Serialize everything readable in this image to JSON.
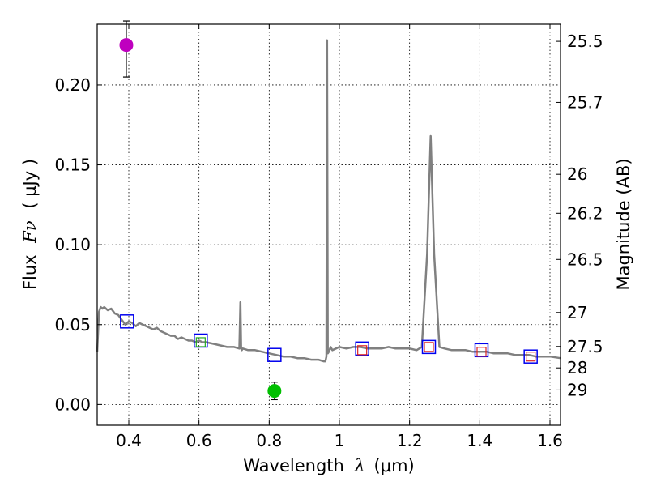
{
  "chart_data": {
    "type": "scatter",
    "title": "",
    "xlabel_pre": "Wavelength",
    "xlabel_sym": "λ",
    "xlabel_unit": "(μm)",
    "ylabel_pre": "Flux",
    "ylabel_sym": "Fν",
    "ylabel_unit": "( μJy )",
    "y2label": "Magnitude (AB)",
    "xlim": [
      0.31,
      1.63
    ],
    "ylim": [
      -0.013,
      0.238
    ],
    "grid": true,
    "x_ticks": [
      {
        "v": 0.4,
        "label": "0.4"
      },
      {
        "v": 0.6,
        "label": "0.6"
      },
      {
        "v": 0.8,
        "label": "0.8"
      },
      {
        "v": 1.0,
        "label": "1"
      },
      {
        "v": 1.2,
        "label": "1.2"
      },
      {
        "v": 1.4,
        "label": "1.4"
      },
      {
        "v": 1.6,
        "label": "1.6"
      }
    ],
    "y_ticks": [
      {
        "v": 0.0,
        "label": "0.00"
      },
      {
        "v": 0.05,
        "label": "0.05"
      },
      {
        "v": 0.1,
        "label": "0.10"
      },
      {
        "v": 0.15,
        "label": "0.15"
      },
      {
        "v": 0.2,
        "label": "0.20"
      }
    ],
    "mag_ticks": [
      {
        "v": 0.2273,
        "label": "25.5"
      },
      {
        "v": 0.1891,
        "label": "25.7"
      },
      {
        "v": 0.1441,
        "label": "26"
      },
      {
        "v": 0.1197,
        "label": "26.2"
      },
      {
        "v": 0.0908,
        "label": "26.5"
      },
      {
        "v": 0.0576,
        "label": "27"
      },
      {
        "v": 0.0363,
        "label": "27.5"
      },
      {
        "v": 0.0229,
        "label": "28"
      },
      {
        "v": 0.0091,
        "label": "29"
      }
    ],
    "sed_model": {
      "color": "#808080",
      "x": [
        0.31,
        0.315,
        0.32,
        0.325,
        0.33,
        0.34,
        0.35,
        0.36,
        0.37,
        0.38,
        0.39,
        0.4,
        0.41,
        0.42,
        0.43,
        0.44,
        0.45,
        0.46,
        0.47,
        0.48,
        0.49,
        0.5,
        0.51,
        0.52,
        0.53,
        0.54,
        0.55,
        0.56,
        0.57,
        0.58,
        0.59,
        0.6,
        0.61,
        0.62,
        0.64,
        0.66,
        0.68,
        0.7,
        0.715,
        0.718,
        0.72,
        0.722,
        0.725,
        0.74,
        0.76,
        0.78,
        0.8,
        0.82,
        0.84,
        0.86,
        0.88,
        0.9,
        0.92,
        0.94,
        0.955,
        0.96,
        0.963,
        0.965,
        0.967,
        0.97,
        0.975,
        0.98,
        0.99,
        1.0,
        1.02,
        1.04,
        1.06,
        1.08,
        1.1,
        1.12,
        1.14,
        1.16,
        1.18,
        1.2,
        1.22,
        1.235,
        1.25,
        1.26,
        1.27,
        1.285,
        1.3,
        1.32,
        1.34,
        1.36,
        1.38,
        1.4,
        1.42,
        1.44,
        1.46,
        1.48,
        1.5,
        1.52,
        1.54,
        1.56,
        1.58,
        1.6,
        1.63
      ],
      "y": [
        0.033,
        0.058,
        0.061,
        0.06,
        0.061,
        0.059,
        0.06,
        0.057,
        0.056,
        0.053,
        0.05,
        0.052,
        0.051,
        0.049,
        0.051,
        0.05,
        0.049,
        0.048,
        0.047,
        0.048,
        0.046,
        0.045,
        0.044,
        0.043,
        0.043,
        0.041,
        0.042,
        0.041,
        0.04,
        0.04,
        0.039,
        0.04,
        0.039,
        0.039,
        0.038,
        0.037,
        0.036,
        0.036,
        0.035,
        0.064,
        0.035,
        0.034,
        0.035,
        0.034,
        0.034,
        0.033,
        0.032,
        0.031,
        0.03,
        0.03,
        0.029,
        0.029,
        0.028,
        0.028,
        0.027,
        0.027,
        0.03,
        0.228,
        0.032,
        0.033,
        0.036,
        0.034,
        0.035,
        0.036,
        0.035,
        0.036,
        0.036,
        0.035,
        0.035,
        0.035,
        0.036,
        0.035,
        0.035,
        0.035,
        0.034,
        0.036,
        0.094,
        0.168,
        0.094,
        0.036,
        0.035,
        0.034,
        0.034,
        0.034,
        0.033,
        0.033,
        0.033,
        0.032,
        0.032,
        0.032,
        0.031,
        0.031,
        0.031,
        0.03,
        0.03,
        0.03,
        0.029
      ]
    },
    "model_points": [
      {
        "x": 0.395,
        "y": 0.052
      },
      {
        "x": 0.605,
        "y": 0.04
      },
      {
        "x": 0.815,
        "y": 0.031
      },
      {
        "x": 1.065,
        "y": 0.035
      },
      {
        "x": 1.255,
        "y": 0.036
      },
      {
        "x": 1.405,
        "y": 0.034
      },
      {
        "x": 1.545,
        "y": 0.03
      }
    ],
    "inner_points": [
      {
        "x": 0.605,
        "y": 0.039,
        "color": "#22aa22"
      },
      {
        "x": 1.065,
        "y": 0.034,
        "color": "#dd2222"
      },
      {
        "x": 1.255,
        "y": 0.036,
        "color": "#dd2222"
      },
      {
        "x": 1.405,
        "y": 0.033,
        "color": "#dd2222"
      },
      {
        "x": 1.545,
        "y": 0.03,
        "color": "#dd2222"
      }
    ],
    "observed_points": [
      {
        "x": 0.393,
        "y": 0.225,
        "err_low": 0.02,
        "err_high": 0.015,
        "color": "#bf00bf"
      },
      {
        "x": 0.815,
        "y": 0.0085,
        "err_low": 0.0055,
        "err_high": 0.0055,
        "color": "#00bf00"
      }
    ],
    "model_marker_color": "#0000ee"
  }
}
